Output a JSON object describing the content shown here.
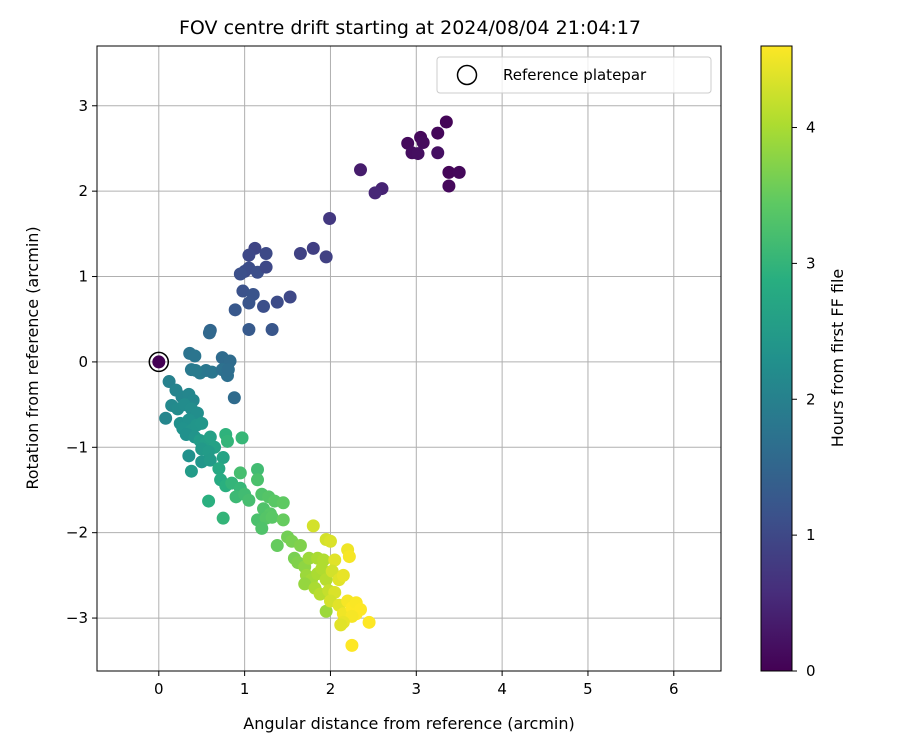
{
  "chart_data": {
    "type": "scatter",
    "title": "FOV centre drift starting at 2024/08/04 21:04:17",
    "xlabel": "Angular distance from reference (arcmin)",
    "ylabel": "Rotation from reference (arcmin)",
    "xlim": [
      -0.72,
      6.55
    ],
    "ylim": [
      -3.62,
      3.7
    ],
    "xticks": [
      0,
      1,
      2,
      3,
      4,
      5,
      6
    ],
    "yticks": [
      -3,
      -2,
      -1,
      0,
      1,
      2,
      3
    ],
    "xtick_labels": [
      "0",
      "1",
      "2",
      "3",
      "4",
      "5",
      "6"
    ],
    "ytick_labels": [
      "−3",
      "−2",
      "−1",
      "0",
      "1",
      "2",
      "3"
    ],
    "grid": true,
    "legend": {
      "placement": "top-right",
      "entries": [
        "Reference platepar"
      ]
    },
    "reference_point": {
      "x": 0,
      "y": 0
    },
    "colorbar": {
      "label": "Hours from first FF file",
      "range": [
        0,
        4.6
      ],
      "ticks": [
        0,
        1,
        2,
        3,
        4
      ],
      "tick_labels": [
        "0",
        "1",
        "2",
        "3",
        "4"
      ],
      "colormap": "viridis"
    },
    "points": [
      {
        "x": 3.35,
        "y": 2.81,
        "c": 0.05
      },
      {
        "x": 3.25,
        "y": 2.68,
        "c": 0.08
      },
      {
        "x": 3.05,
        "y": 2.63,
        "c": 0.1
      },
      {
        "x": 2.9,
        "y": 2.56,
        "c": 0.12
      },
      {
        "x": 3.08,
        "y": 2.57,
        "c": 0.14
      },
      {
        "x": 2.95,
        "y": 2.45,
        "c": 0.16
      },
      {
        "x": 3.02,
        "y": 2.44,
        "c": 0.18
      },
      {
        "x": 3.25,
        "y": 2.45,
        "c": 0.2
      },
      {
        "x": 3.38,
        "y": 2.22,
        "c": 0.06
      },
      {
        "x": 3.5,
        "y": 2.22,
        "c": 0.09
      },
      {
        "x": 3.38,
        "y": 2.06,
        "c": 0.11
      },
      {
        "x": 2.35,
        "y": 2.25,
        "c": 0.35
      },
      {
        "x": 2.6,
        "y": 2.03,
        "c": 0.45
      },
      {
        "x": 2.52,
        "y": 1.98,
        "c": 0.5
      },
      {
        "x": 1.99,
        "y": 1.68,
        "c": 0.75
      },
      {
        "x": 1.12,
        "y": 1.33,
        "c": 0.95
      },
      {
        "x": 1.05,
        "y": 1.25,
        "c": 1.0
      },
      {
        "x": 1.25,
        "y": 1.27,
        "c": 1.02
      },
      {
        "x": 1.65,
        "y": 1.27,
        "c": 0.9
      },
      {
        "x": 1.8,
        "y": 1.33,
        "c": 0.85
      },
      {
        "x": 1.95,
        "y": 1.23,
        "c": 0.88
      },
      {
        "x": 1.0,
        "y": 1.06,
        "c": 1.05
      },
      {
        "x": 1.05,
        "y": 1.1,
        "c": 1.08
      },
      {
        "x": 1.15,
        "y": 1.05,
        "c": 1.1
      },
      {
        "x": 0.95,
        "y": 1.03,
        "c": 1.12
      },
      {
        "x": 1.25,
        "y": 1.11,
        "c": 1.0
      },
      {
        "x": 0.98,
        "y": 0.83,
        "c": 1.15
      },
      {
        "x": 1.1,
        "y": 0.79,
        "c": 1.18
      },
      {
        "x": 1.05,
        "y": 0.69,
        "c": 1.2
      },
      {
        "x": 1.22,
        "y": 0.65,
        "c": 1.1
      },
      {
        "x": 1.38,
        "y": 0.7,
        "c": 1.05
      },
      {
        "x": 1.53,
        "y": 0.76,
        "c": 1.0
      },
      {
        "x": 0.89,
        "y": 0.61,
        "c": 1.25
      },
      {
        "x": 1.05,
        "y": 0.38,
        "c": 1.3
      },
      {
        "x": 1.32,
        "y": 0.38,
        "c": 1.22
      },
      {
        "x": 0.6,
        "y": 0.37,
        "c": 1.5
      },
      {
        "x": 0.59,
        "y": 0.34,
        "c": 1.55
      },
      {
        "x": 0.36,
        "y": 0.1,
        "c": 1.75
      },
      {
        "x": 0.42,
        "y": 0.07,
        "c": 1.78
      },
      {
        "x": 0.74,
        "y": 0.05,
        "c": 1.6
      },
      {
        "x": 0.83,
        "y": 0.01,
        "c": 1.62
      },
      {
        "x": 0.38,
        "y": -0.09,
        "c": 1.85
      },
      {
        "x": 0.48,
        "y": -0.13,
        "c": 1.88
      },
      {
        "x": 0.55,
        "y": -0.1,
        "c": 1.82
      },
      {
        "x": 0.62,
        "y": -0.12,
        "c": 1.8
      },
      {
        "x": 0.74,
        "y": -0.09,
        "c": 1.7
      },
      {
        "x": 0.8,
        "y": -0.16,
        "c": 1.68
      },
      {
        "x": 0.81,
        "y": -0.09,
        "c": 1.65
      },
      {
        "x": 0.43,
        "y": -0.1,
        "c": 1.9
      },
      {
        "x": 0.12,
        "y": -0.23,
        "c": 2.0
      },
      {
        "x": 0.2,
        "y": -0.33,
        "c": 2.05
      },
      {
        "x": 0.27,
        "y": -0.41,
        "c": 2.08
      },
      {
        "x": 0.35,
        "y": -0.38,
        "c": 2.1
      },
      {
        "x": 0.88,
        "y": -0.42,
        "c": 1.6
      },
      {
        "x": 0.4,
        "y": -0.45,
        "c": 2.12
      },
      {
        "x": 0.15,
        "y": -0.51,
        "c": 2.15
      },
      {
        "x": 0.22,
        "y": -0.55,
        "c": 2.18
      },
      {
        "x": 0.3,
        "y": -0.5,
        "c": 2.2
      },
      {
        "x": 0.38,
        "y": -0.55,
        "c": 2.22
      },
      {
        "x": 0.45,
        "y": -0.6,
        "c": 2.25
      },
      {
        "x": 0.08,
        "y": -0.66,
        "c": 2.1
      },
      {
        "x": 0.25,
        "y": -0.72,
        "c": 2.28
      },
      {
        "x": 0.35,
        "y": -0.68,
        "c": 2.3
      },
      {
        "x": 0.28,
        "y": -0.78,
        "c": 2.32
      },
      {
        "x": 0.38,
        "y": -0.8,
        "c": 2.35
      },
      {
        "x": 0.44,
        "y": -0.74,
        "c": 2.38
      },
      {
        "x": 0.5,
        "y": -0.72,
        "c": 2.4
      },
      {
        "x": 0.32,
        "y": -0.85,
        "c": 2.3
      },
      {
        "x": 0.42,
        "y": -0.88,
        "c": 2.36
      },
      {
        "x": 0.48,
        "y": -0.92,
        "c": 2.5
      },
      {
        "x": 0.55,
        "y": -0.95,
        "c": 2.55
      },
      {
        "x": 0.6,
        "y": -0.88,
        "c": 2.6
      },
      {
        "x": 0.65,
        "y": -1.0,
        "c": 2.62
      },
      {
        "x": 0.5,
        "y": -1.02,
        "c": 2.45
      },
      {
        "x": 0.58,
        "y": -1.05,
        "c": 2.5
      },
      {
        "x": 0.35,
        "y": -1.1,
        "c": 2.3
      },
      {
        "x": 0.5,
        "y": -1.17,
        "c": 2.4
      },
      {
        "x": 0.6,
        "y": -1.15,
        "c": 2.48
      },
      {
        "x": 0.38,
        "y": -1.28,
        "c": 2.5
      },
      {
        "x": 0.75,
        "y": -1.12,
        "c": 2.65
      },
      {
        "x": 0.78,
        "y": -0.85,
        "c": 2.95
      },
      {
        "x": 0.8,
        "y": -0.93,
        "c": 3.0
      },
      {
        "x": 0.97,
        "y": -0.89,
        "c": 3.05
      },
      {
        "x": 0.7,
        "y": -1.25,
        "c": 2.75
      },
      {
        "x": 0.95,
        "y": -1.3,
        "c": 3.2
      },
      {
        "x": 1.15,
        "y": -1.26,
        "c": 3.15
      },
      {
        "x": 0.72,
        "y": -1.38,
        "c": 2.8
      },
      {
        "x": 0.78,
        "y": -1.45,
        "c": 2.9
      },
      {
        "x": 0.85,
        "y": -1.42,
        "c": 3.0
      },
      {
        "x": 0.95,
        "y": -1.48,
        "c": 3.05
      },
      {
        "x": 0.9,
        "y": -1.58,
        "c": 3.1
      },
      {
        "x": 1.0,
        "y": -1.55,
        "c": 3.15
      },
      {
        "x": 1.05,
        "y": -1.62,
        "c": 3.2
      },
      {
        "x": 1.15,
        "y": -1.38,
        "c": 3.25
      },
      {
        "x": 0.58,
        "y": -1.63,
        "c": 2.9
      },
      {
        "x": 0.75,
        "y": -1.83,
        "c": 3.0
      },
      {
        "x": 1.2,
        "y": -1.55,
        "c": 3.3
      },
      {
        "x": 1.28,
        "y": -1.58,
        "c": 3.35
      },
      {
        "x": 1.35,
        "y": -1.63,
        "c": 3.4
      },
      {
        "x": 1.45,
        "y": -1.65,
        "c": 3.45
      },
      {
        "x": 1.22,
        "y": -1.72,
        "c": 3.3
      },
      {
        "x": 1.3,
        "y": -1.78,
        "c": 3.38
      },
      {
        "x": 1.15,
        "y": -1.85,
        "c": 3.25
      },
      {
        "x": 1.25,
        "y": -1.83,
        "c": 3.35
      },
      {
        "x": 1.32,
        "y": -1.82,
        "c": 3.4
      },
      {
        "x": 1.2,
        "y": -1.95,
        "c": 3.3
      },
      {
        "x": 1.45,
        "y": -1.85,
        "c": 3.5
      },
      {
        "x": 1.5,
        "y": -2.05,
        "c": 3.6
      },
      {
        "x": 1.55,
        "y": -2.1,
        "c": 3.65
      },
      {
        "x": 1.38,
        "y": -2.15,
        "c": 3.5
      },
      {
        "x": 1.65,
        "y": -2.15,
        "c": 3.7
      },
      {
        "x": 1.58,
        "y": -2.3,
        "c": 3.65
      },
      {
        "x": 1.62,
        "y": -2.35,
        "c": 3.7
      },
      {
        "x": 1.7,
        "y": -2.4,
        "c": 3.8
      },
      {
        "x": 1.75,
        "y": -2.3,
        "c": 3.9
      },
      {
        "x": 1.8,
        "y": -1.92,
        "c": 4.3
      },
      {
        "x": 1.85,
        "y": -2.3,
        "c": 4.0
      },
      {
        "x": 1.92,
        "y": -2.32,
        "c": 4.05
      },
      {
        "x": 1.95,
        "y": -2.08,
        "c": 4.3
      },
      {
        "x": 2.0,
        "y": -2.1,
        "c": 4.35
      },
      {
        "x": 1.72,
        "y": -2.5,
        "c": 3.9
      },
      {
        "x": 1.78,
        "y": -2.55,
        "c": 3.95
      },
      {
        "x": 1.85,
        "y": -2.48,
        "c": 4.0
      },
      {
        "x": 1.9,
        "y": -2.42,
        "c": 4.05
      },
      {
        "x": 1.95,
        "y": -2.55,
        "c": 4.1
      },
      {
        "x": 2.05,
        "y": -2.32,
        "c": 4.4
      },
      {
        "x": 2.02,
        "y": -2.45,
        "c": 4.3
      },
      {
        "x": 1.7,
        "y": -2.6,
        "c": 3.85
      },
      {
        "x": 1.82,
        "y": -2.65,
        "c": 4.0
      },
      {
        "x": 1.88,
        "y": -2.72,
        "c": 4.1
      },
      {
        "x": 1.98,
        "y": -2.68,
        "c": 4.2
      },
      {
        "x": 2.05,
        "y": -2.7,
        "c": 4.35
      },
      {
        "x": 2.1,
        "y": -2.55,
        "c": 4.4
      },
      {
        "x": 2.15,
        "y": -2.5,
        "c": 4.45
      },
      {
        "x": 2.2,
        "y": -2.2,
        "c": 4.5
      },
      {
        "x": 2.22,
        "y": -2.28,
        "c": 4.55
      },
      {
        "x": 1.95,
        "y": -2.92,
        "c": 3.9
      },
      {
        "x": 2.0,
        "y": -2.8,
        "c": 4.3
      },
      {
        "x": 2.1,
        "y": -2.85,
        "c": 4.4
      },
      {
        "x": 2.15,
        "y": -2.95,
        "c": 4.5
      },
      {
        "x": 2.2,
        "y": -2.8,
        "c": 4.55
      },
      {
        "x": 2.25,
        "y": -2.88,
        "c": 4.6
      },
      {
        "x": 2.3,
        "y": -2.82,
        "c": 4.58
      },
      {
        "x": 2.3,
        "y": -2.95,
        "c": 4.6
      },
      {
        "x": 2.35,
        "y": -2.9,
        "c": 4.6
      },
      {
        "x": 2.25,
        "y": -2.98,
        "c": 4.55
      },
      {
        "x": 2.15,
        "y": -3.05,
        "c": 4.45
      },
      {
        "x": 2.12,
        "y": -3.08,
        "c": 4.4
      },
      {
        "x": 2.45,
        "y": -3.05,
        "c": 4.6
      },
      {
        "x": 2.25,
        "y": -3.32,
        "c": 4.6
      }
    ]
  }
}
